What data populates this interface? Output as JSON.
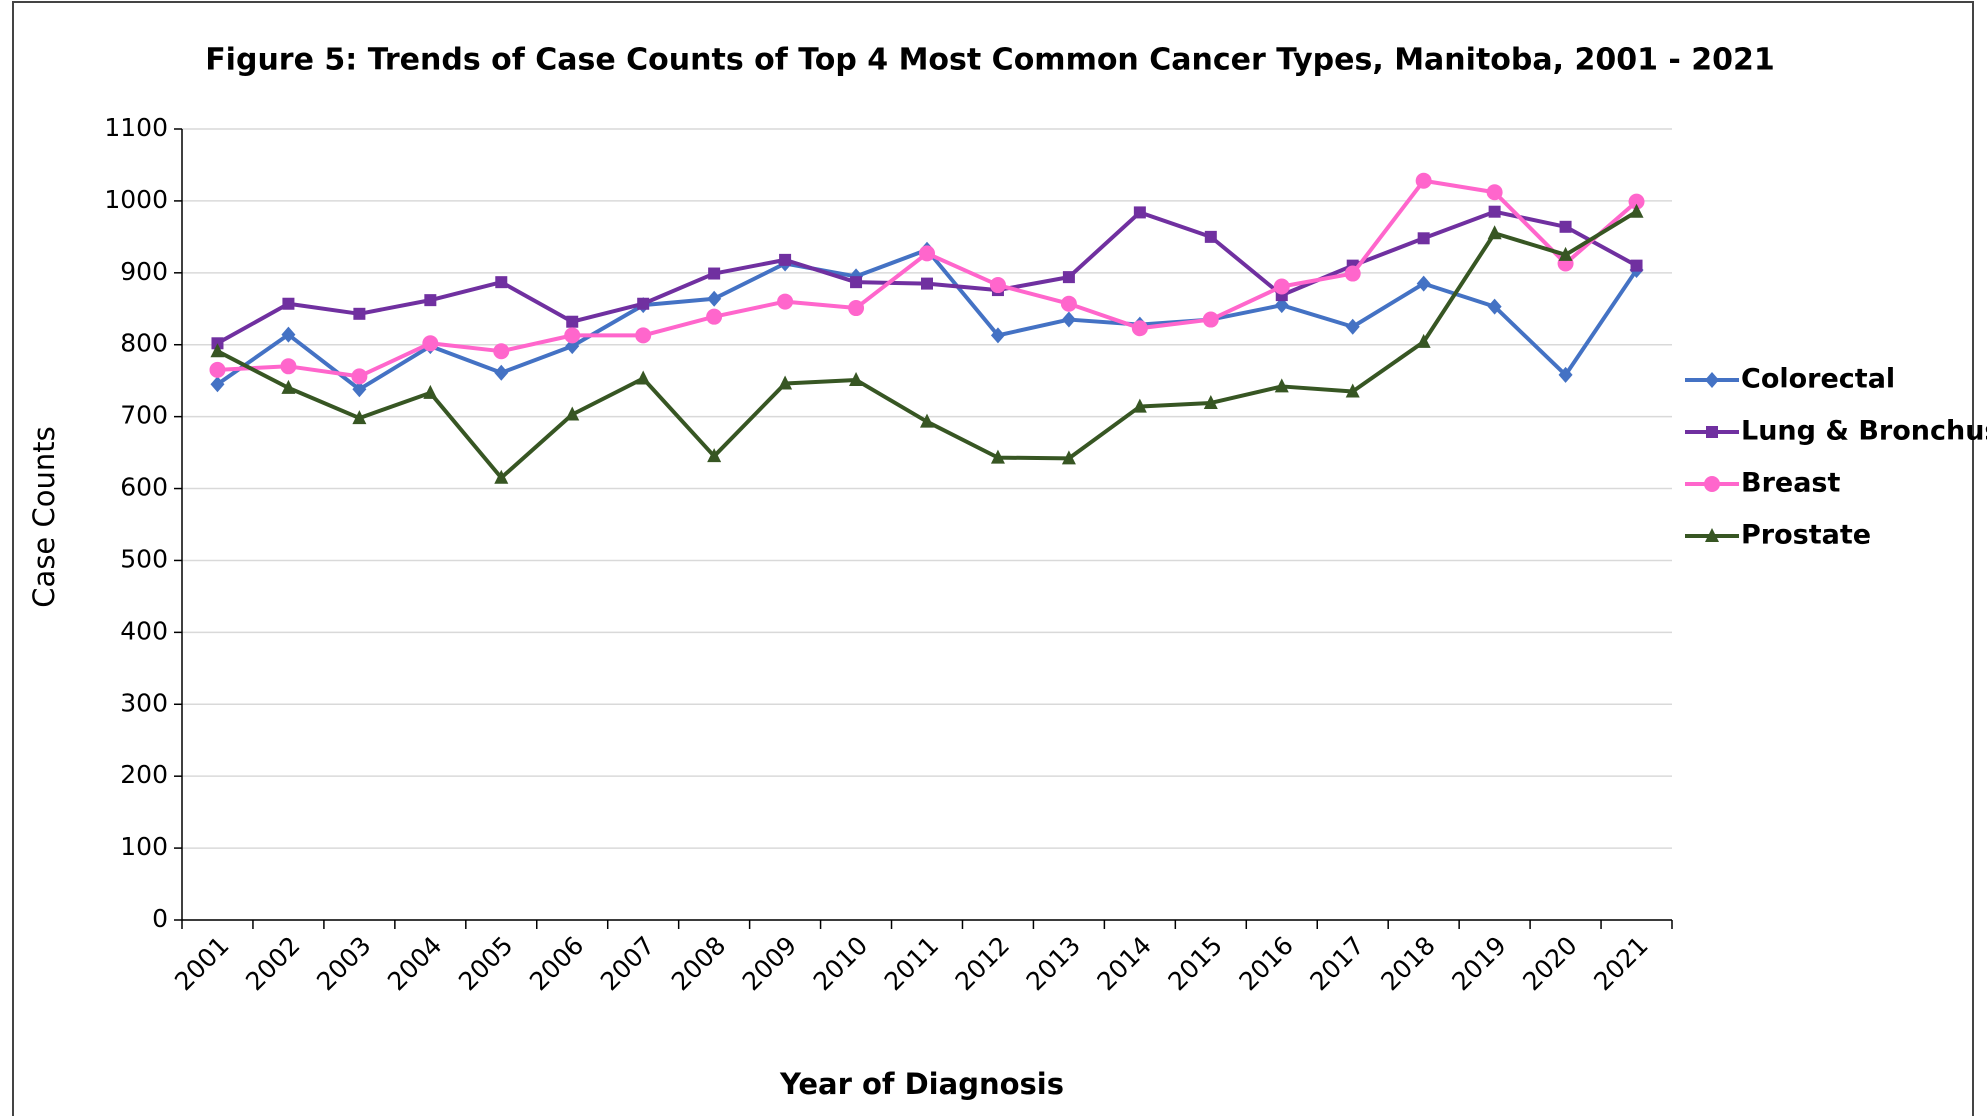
{
  "chart_data": {
    "type": "line",
    "title": "Figure 5: Trends of Case Counts of Top 4 Most Common Cancer Types, Manitoba, 2001 - 2021",
    "x_label": "Year of Diagnosis",
    "y_label": "Case Counts",
    "categories": [
      "2001",
      "2002",
      "2003",
      "2004",
      "2005",
      "2006",
      "2007",
      "2008",
      "2009",
      "2010",
      "2011",
      "2012",
      "2013",
      "2014",
      "2015",
      "2016",
      "2017",
      "2018",
      "2019",
      "2020",
      "2021"
    ],
    "series": [
      {
        "name": "Colorectal",
        "color": "#4472c4",
        "marker": "diamond",
        "values": [
          745,
          814,
          738,
          798,
          761,
          798,
          855,
          864,
          913,
          895,
          932,
          813,
          835,
          828,
          835,
          855,
          825,
          885,
          853,
          758,
          904
        ]
      },
      {
        "name": "Lung & Bronchus",
        "color": "#7030a0",
        "marker": "square",
        "values": [
          802,
          857,
          843,
          862,
          887,
          832,
          857,
          899,
          918,
          887,
          885,
          876,
          894,
          984,
          950,
          869,
          910,
          948,
          985,
          964,
          910
        ]
      },
      {
        "name": "Breast",
        "color": "#ff66cc",
        "marker": "circle",
        "values": [
          765,
          770,
          756,
          802,
          791,
          813,
          813,
          839,
          860,
          851,
          927,
          883,
          857,
          823,
          835,
          881,
          899,
          1028,
          1012,
          913,
          999
        ]
      },
      {
        "name": "Prostate",
        "color": "#375623",
        "marker": "triangle",
        "values": [
          791,
          740,
          698,
          733,
          615,
          703,
          753,
          645,
          746,
          751,
          693,
          643,
          642,
          714,
          719,
          742,
          735,
          804,
          955,
          925,
          985
        ]
      }
    ],
    "ylim": [
      0,
      1100
    ],
    "yticks": [
      0,
      100,
      200,
      300,
      400,
      500,
      600,
      700,
      800,
      900,
      1000,
      1100
    ],
    "grid": true,
    "legend": "right"
  }
}
